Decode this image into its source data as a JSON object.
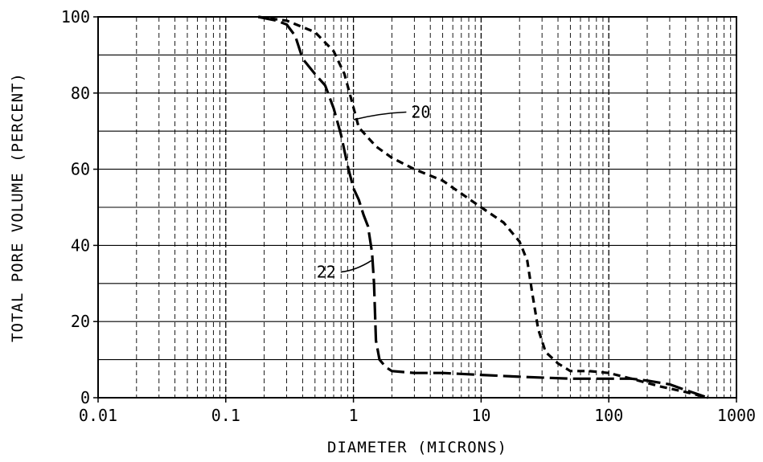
{
  "chart_data": {
    "type": "line",
    "title": "",
    "xlabel": "DIAMETER (MICRONS)",
    "ylabel": "TOTAL PORE VOLUME (PERCENT)",
    "xscale": "log",
    "xlim": [
      0.01,
      1000
    ],
    "ylim": [
      0,
      100
    ],
    "x_ticks": [
      {
        "value": 0.01,
        "label": "0.01"
      },
      {
        "value": 0.1,
        "label": "0.1"
      },
      {
        "value": 1,
        "label": "1"
      },
      {
        "value": 10,
        "label": "10"
      },
      {
        "value": 100,
        "label": "100"
      },
      {
        "value": 1000,
        "label": "1000"
      }
    ],
    "y_ticks": [
      {
        "value": 0,
        "label": "0"
      },
      {
        "value": 20,
        "label": "20"
      },
      {
        "value": 40,
        "label": "40"
      },
      {
        "value": 60,
        "label": "60"
      },
      {
        "value": 80,
        "label": "80"
      },
      {
        "value": 100,
        "label": "100"
      }
    ],
    "grid": {
      "horizontal_major": true,
      "horizontal_minor": true,
      "vertical_log_minor": true
    },
    "series": [
      {
        "name": "20",
        "line_style": "short-dashed",
        "x": [
          0.18,
          0.3,
          0.5,
          0.7,
          0.85,
          0.95,
          1.1,
          1.5,
          2.0,
          3.0,
          5.0,
          10,
          15,
          20,
          23,
          25,
          28,
          32,
          40,
          50,
          70,
          100,
          150,
          250,
          400,
          600
        ],
        "y": [
          100,
          99,
          96,
          91,
          85,
          79,
          71,
          66,
          63,
          60,
          57,
          50,
          46,
          41,
          36,
          28,
          18,
          12,
          9,
          7,
          7,
          6.5,
          5,
          3,
          1.5,
          0
        ]
      },
      {
        "name": "22",
        "line_style": "long-dashed",
        "x": [
          0.18,
          0.25,
          0.3,
          0.35,
          0.4,
          0.5,
          0.6,
          0.7,
          0.8,
          0.9,
          1.0,
          1.1,
          1.2,
          1.3,
          1.4,
          1.45,
          1.5,
          1.6,
          1.8,
          2.0,
          3.0,
          5.0,
          10,
          20,
          50,
          100,
          150,
          200,
          300,
          400,
          600
        ],
        "y": [
          100,
          99,
          98,
          95,
          89,
          85,
          82,
          76,
          69,
          61,
          55,
          52,
          48,
          45,
          38,
          30,
          15,
          10,
          8,
          7,
          6.5,
          6.5,
          6,
          5.5,
          5,
          5,
          5,
          4.5,
          3.5,
          2,
          0
        ]
      }
    ],
    "annotations": [
      {
        "text": "20",
        "series": "20",
        "arrow_to": {
          "x": 1.0,
          "y": 73
        },
        "text_at": {
          "x": 3.0,
          "y": 75
        }
      },
      {
        "text": "22",
        "series": "22",
        "arrow_to": {
          "x": 1.38,
          "y": 36
        },
        "text_at": {
          "x": 0.5,
          "y": 33
        }
      }
    ]
  }
}
